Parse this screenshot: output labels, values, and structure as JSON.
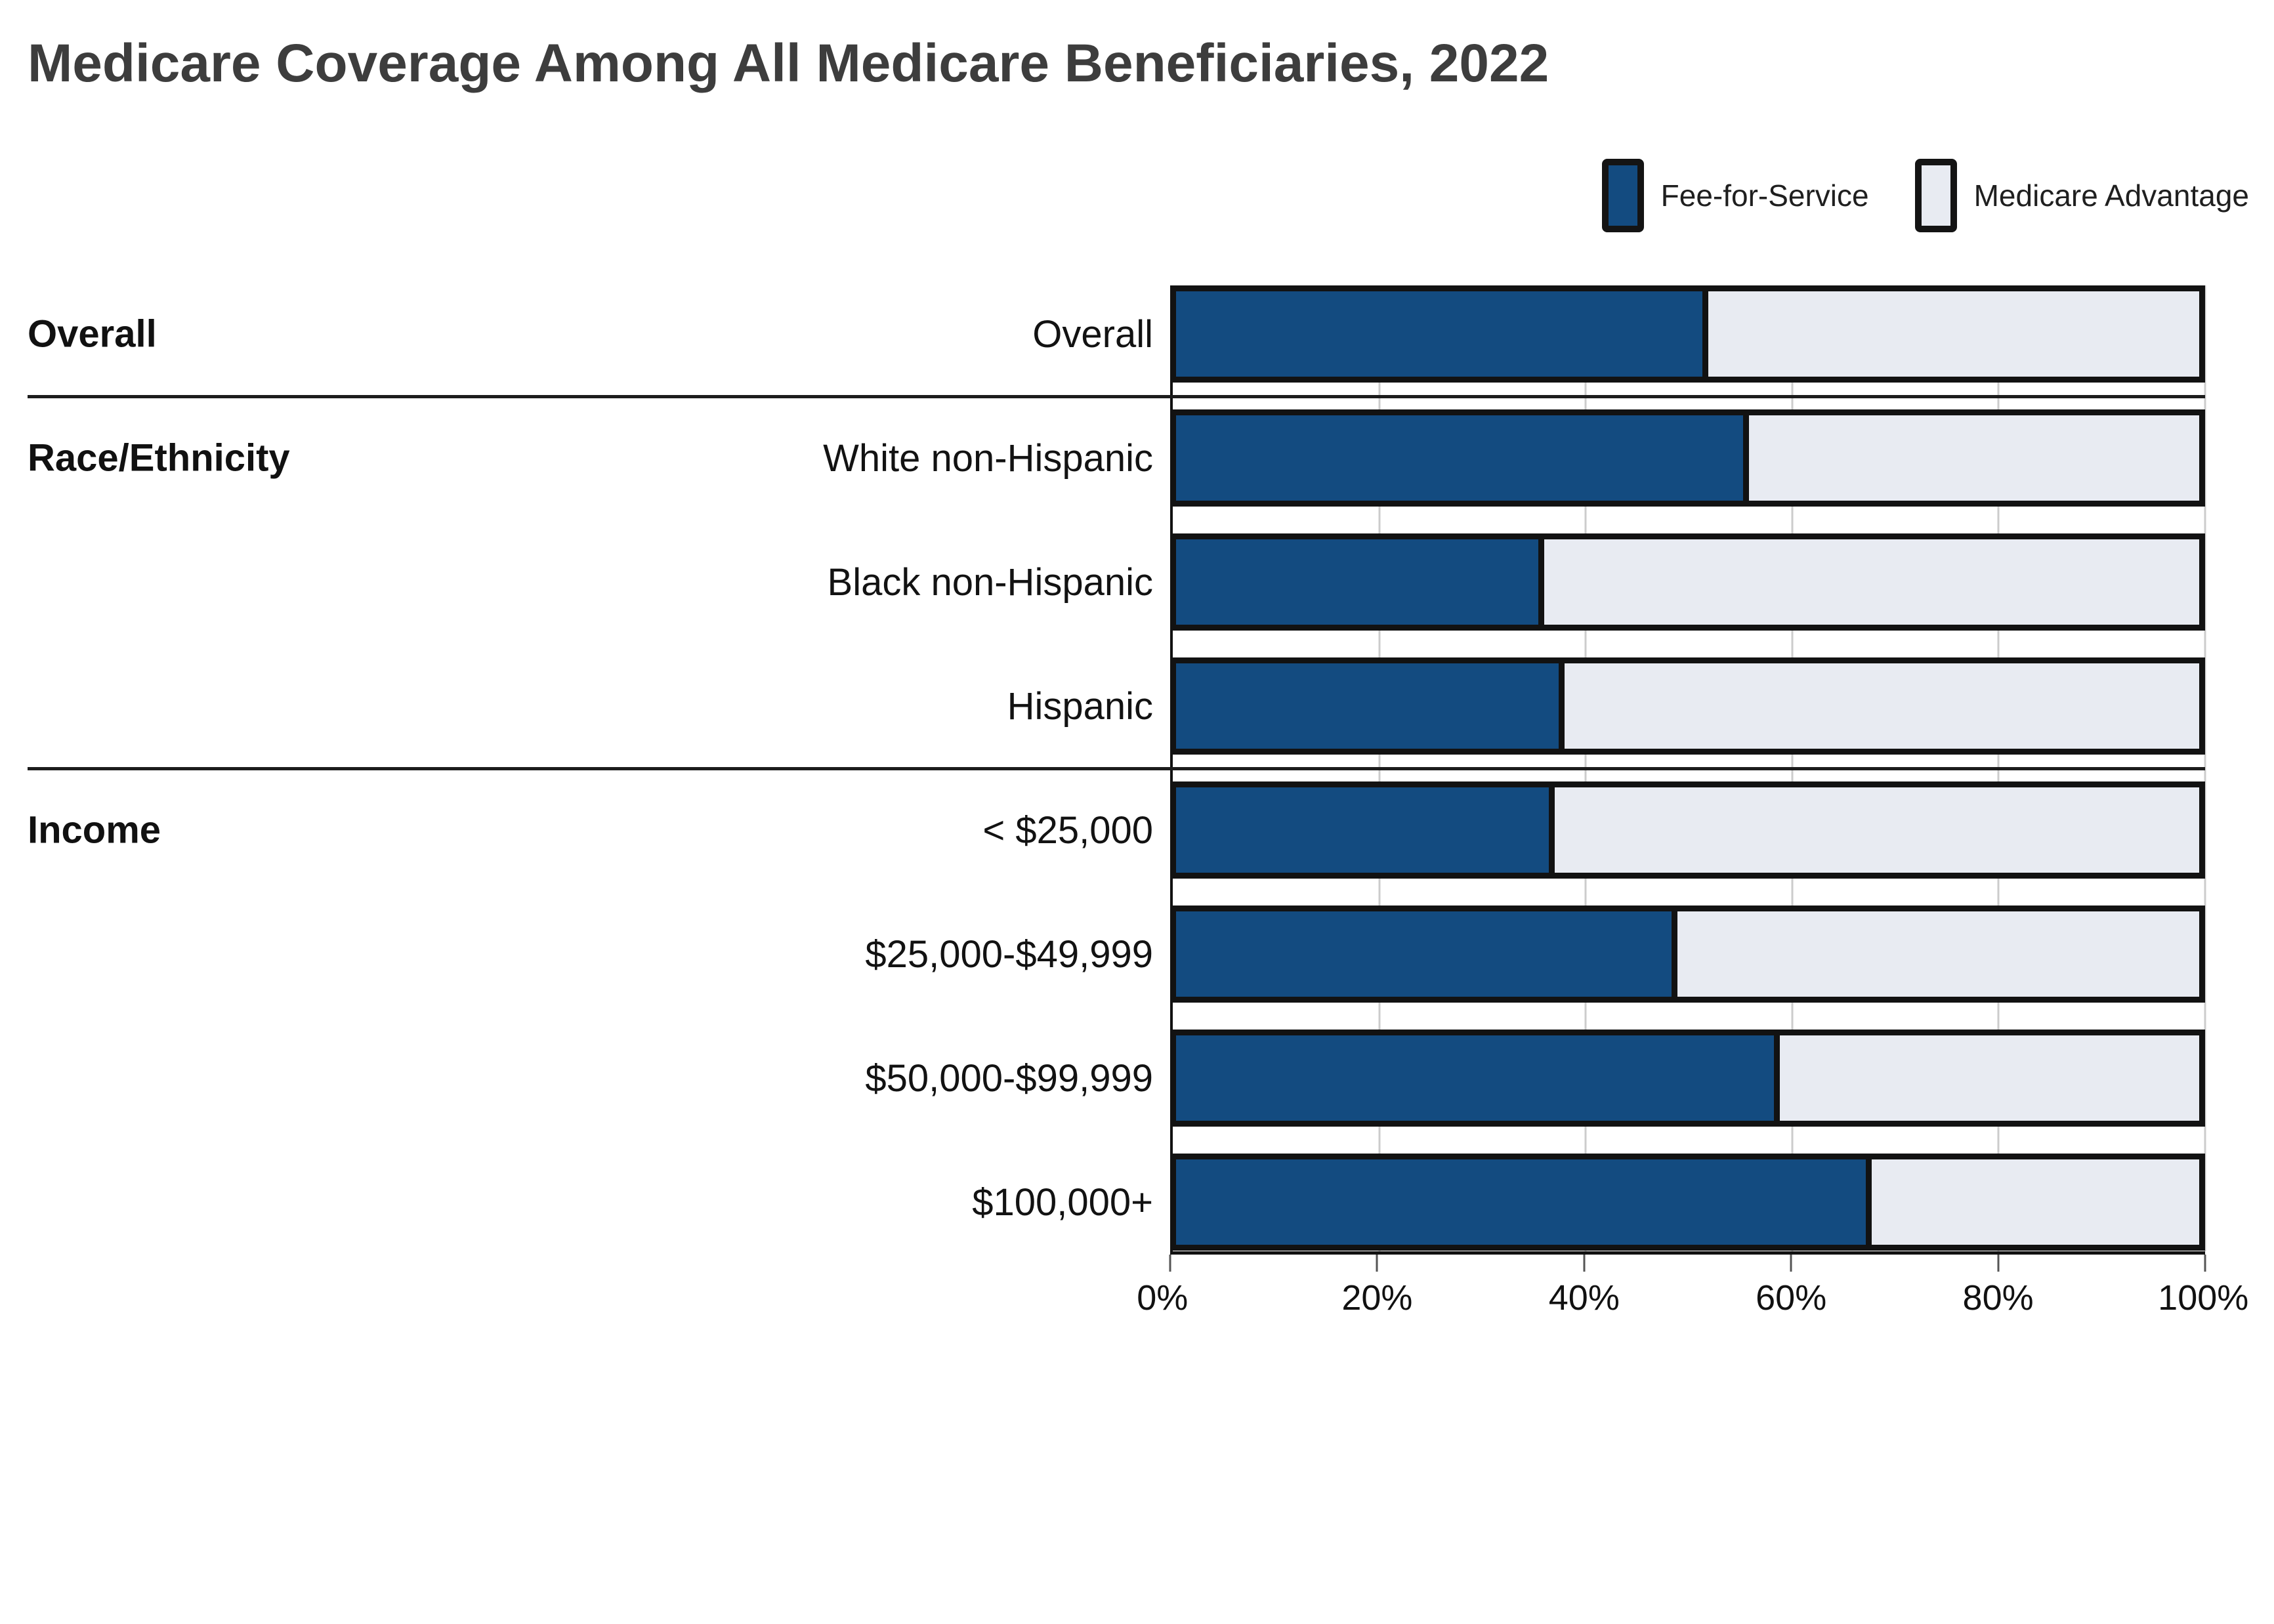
{
  "title": "Medicare Coverage Among All Medicare Beneficiaries, 2022",
  "colors": {
    "fee_for_service": "#134b80",
    "medicare_advantage": "#e8ebf2",
    "bar_border": "#121212",
    "title_text": "#3d3d3d",
    "gridline": "#cccccc",
    "divider": "#1c1c1c"
  },
  "legend": [
    {
      "label": "Fee-for-Service",
      "color": "#134b80"
    },
    {
      "label": "Medicare Advantage",
      "color": "#e8ebf2"
    }
  ],
  "chart_data": {
    "type": "bar",
    "orientation": "horizontal",
    "stacked": true,
    "title": "Medicare Coverage Among All Medicare Beneficiaries, 2022",
    "xlabel": "",
    "ylabel": "",
    "xlim": [
      0,
      100
    ],
    "x_tick_labels": [
      "0%",
      "20%",
      "40%",
      "60%",
      "80%",
      "100%"
    ],
    "x_tick_values": [
      0,
      20,
      40,
      60,
      80,
      100
    ],
    "grid": true,
    "legend_position": "top-right",
    "series_names": [
      "Fee-for-Service",
      "Medicare Advantage"
    ],
    "unit": "percent",
    "groups": [
      {
        "label": "Overall",
        "rows": [
          {
            "label": "Overall",
            "fee_for_service": 52,
            "medicare_advantage": 48
          }
        ]
      },
      {
        "label": "Race/Ethnicity",
        "rows": [
          {
            "label": "White non-Hispanic",
            "fee_for_service": 56,
            "medicare_advantage": 44
          },
          {
            "label": "Black non-Hispanic",
            "fee_for_service": 36,
            "medicare_advantage": 64
          },
          {
            "label": "Hispanic",
            "fee_for_service": 38,
            "medicare_advantage": 62
          }
        ]
      },
      {
        "label": "Income",
        "rows": [
          {
            "label": "< $25,000",
            "fee_for_service": 37,
            "medicare_advantage": 63
          },
          {
            "label": "$25,000-$49,999",
            "fee_for_service": 49,
            "medicare_advantage": 51
          },
          {
            "label": "$50,000-$99,999",
            "fee_for_service": 59,
            "medicare_advantage": 41
          },
          {
            "label": "$100,000+",
            "fee_for_service": 68,
            "medicare_advantage": 32
          }
        ]
      }
    ]
  }
}
